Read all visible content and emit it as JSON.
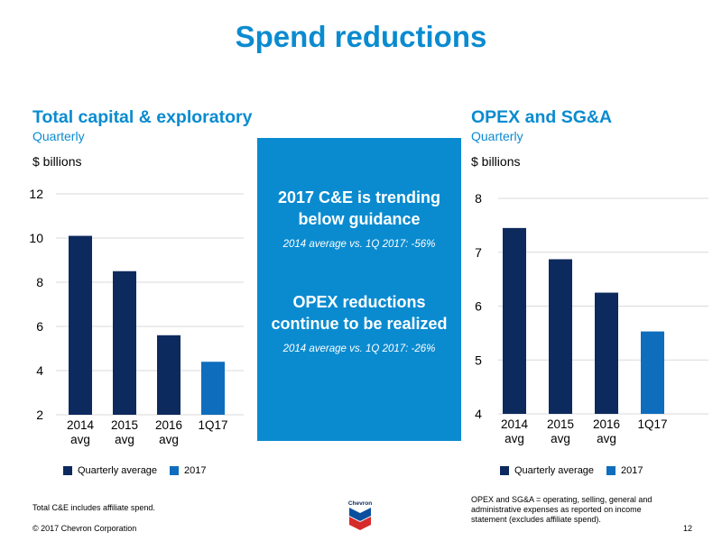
{
  "slide": {
    "title": "Spend reductions",
    "copyright": "© 2017 Chevron Corporation",
    "page_number": "12",
    "logo_text": "Chevron"
  },
  "callout": {
    "heading1_line1": "2017 C&E is trending",
    "heading1_line2": "below guidance",
    "sub1": "2014 average vs. 1Q 2017: -56%",
    "heading2_line1": "OPEX reductions",
    "heading2_line2": "continue to be realized",
    "sub2": "2014 average vs. 1Q 2017: -26%"
  },
  "footnotes": {
    "left": "Total C&E includes affiliate spend.",
    "right_line1": "OPEX and SG&A = operating, selling, general and",
    "right_line2": "administrative expenses as reported on income",
    "right_line3": "statement (excludes affiliate spend)."
  },
  "colors": {
    "accent": "#0a8bd0",
    "dark_navy": "#0d2a5e",
    "medium_blue": "#0f6dbd"
  },
  "chart_data": [
    {
      "type": "bar",
      "title": "Total capital & exploratory",
      "subtitle": "Quarterly",
      "unit_label": "$ billions",
      "categories": [
        "2014\navg",
        "2015\navg",
        "2016\navg",
        "1Q17"
      ],
      "values": [
        10.1,
        8.5,
        5.6,
        4.4
      ],
      "bar_colors": [
        "#0d2a5e",
        "#0d2a5e",
        "#0d2a5e",
        "#0f6dbd"
      ],
      "yticks": [
        2,
        4,
        6,
        8,
        10,
        12
      ],
      "ylim": [
        2,
        12
      ],
      "legend": [
        {
          "label": "Quarterly average",
          "color": "#0d2a5e"
        },
        {
          "label": "2017",
          "color": "#0f6dbd"
        }
      ],
      "legend_position": "bottom"
    },
    {
      "type": "bar",
      "title": "OPEX and SG&A",
      "subtitle": "Quarterly",
      "unit_label": "$ billions",
      "categories": [
        "2014\navg",
        "2015\navg",
        "2016\navg",
        "1Q17"
      ],
      "values": [
        7.45,
        6.87,
        6.25,
        5.53
      ],
      "bar_colors": [
        "#0d2a5e",
        "#0d2a5e",
        "#0d2a5e",
        "#0f6dbd"
      ],
      "yticks": [
        4,
        5,
        6,
        7,
        8
      ],
      "ylim": [
        4,
        8
      ],
      "legend": [
        {
          "label": "Quarterly average",
          "color": "#0d2a5e"
        },
        {
          "label": "2017",
          "color": "#0f6dbd"
        }
      ],
      "legend_position": "bottom"
    }
  ]
}
